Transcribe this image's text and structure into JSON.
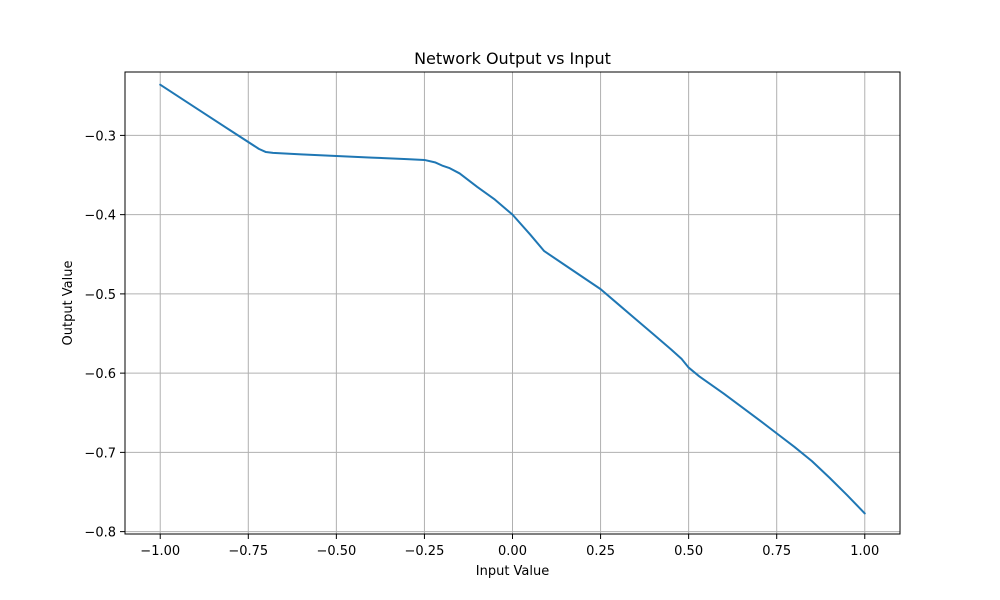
{
  "chart_data": {
    "type": "line",
    "title": "Network Output vs Input",
    "xlabel": "Input Value",
    "ylabel": "Output Value",
    "xlim": [
      -1.1,
      1.1
    ],
    "ylim": [
      -0.803,
      -0.22
    ],
    "xticks": [
      -1.0,
      -0.75,
      -0.5,
      -0.25,
      0.0,
      0.25,
      0.5,
      0.75,
      1.0
    ],
    "xtick_labels": [
      "−1.00",
      "−0.75",
      "−0.50",
      "−0.25",
      "0.00",
      "0.25",
      "0.50",
      "0.75",
      "1.00"
    ],
    "yticks": [
      -0.3,
      -0.4,
      -0.5,
      -0.6,
      -0.7,
      -0.8
    ],
    "ytick_labels": [
      "−0.3",
      "−0.4",
      "−0.5",
      "−0.6",
      "−0.7",
      "−0.8"
    ],
    "grid": true,
    "series": [
      {
        "color": "#1f77b4",
        "x": [
          -1.0,
          -0.9,
          -0.8,
          -0.72,
          -0.7,
          -0.68,
          -0.6,
          -0.5,
          -0.4,
          -0.3,
          -0.25,
          -0.22,
          -0.2,
          -0.18,
          -0.15,
          -0.1,
          -0.05,
          0.0,
          0.05,
          0.09,
          0.15,
          0.2,
          0.25,
          0.3,
          0.35,
          0.4,
          0.45,
          0.48,
          0.5,
          0.53,
          0.6,
          0.7,
          0.75,
          0.8,
          0.85,
          0.9,
          0.95,
          1.0
        ],
        "y": [
          -0.236,
          -0.265,
          -0.294,
          -0.317,
          -0.321,
          -0.322,
          -0.324,
          -0.326,
          -0.328,
          -0.33,
          -0.331,
          -0.334,
          -0.338,
          -0.341,
          -0.348,
          -0.365,
          -0.381,
          -0.4,
          -0.425,
          -0.446,
          -0.464,
          -0.479,
          -0.494,
          -0.513,
          -0.532,
          -0.551,
          -0.57,
          -0.582,
          -0.593,
          -0.604,
          -0.626,
          -0.659,
          -0.676,
          -0.693,
          -0.711,
          -0.732,
          -0.754,
          -0.777
        ]
      }
    ]
  }
}
